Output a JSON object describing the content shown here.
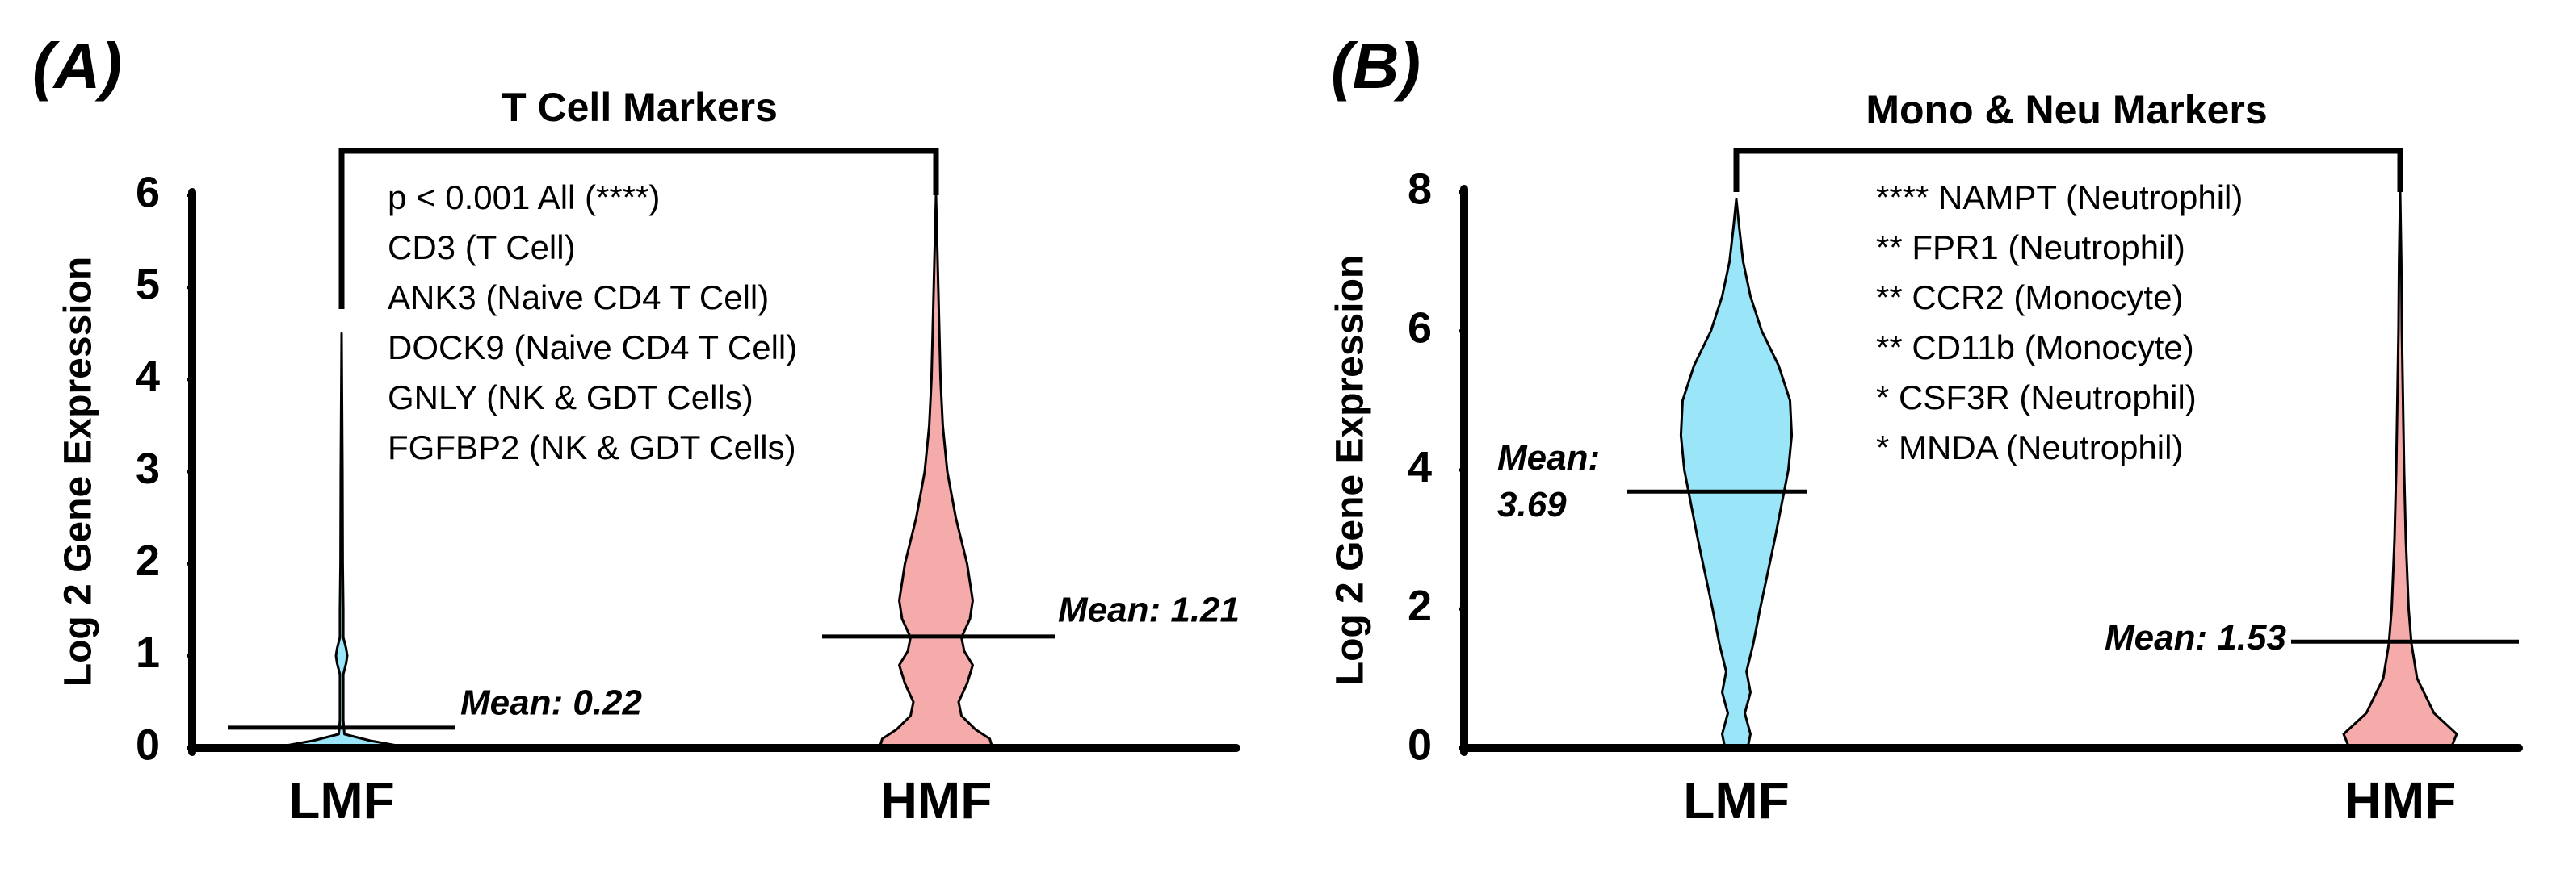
{
  "chart_data": [
    {
      "type": "violin",
      "panel_label": "(A)",
      "title": "T Cell Markers",
      "ylabel": "Log 2 Gene Expression",
      "categories": [
        "LMF",
        "HMF"
      ],
      "ylim": [
        0,
        6
      ],
      "yticks": [
        0,
        1,
        2,
        3,
        4,
        5,
        6
      ],
      "violins": [
        {
          "color": "#9ae6f8",
          "y": [
            0,
            0.03,
            0.08,
            0.15,
            0.3,
            0.8,
            0.92,
            1.0,
            1.08,
            1.2,
            1.5,
            2,
            3,
            4.5
          ],
          "density": [
            1,
            0.95,
            0.5,
            0.05,
            0.03,
            0.03,
            0.08,
            0.1,
            0.08,
            0.03,
            0.03,
            0.02,
            0.015,
            0
          ]
        },
        {
          "color": "#f6abab",
          "y": [
            0,
            0.1,
            0.2,
            0.35,
            0.5,
            0.7,
            0.9,
            1.05,
            1.2,
            1.4,
            1.6,
            2.0,
            2.5,
            3,
            3.5,
            4,
            5,
            6
          ],
          "density": [
            1,
            0.95,
            0.7,
            0.45,
            0.4,
            0.55,
            0.65,
            0.5,
            0.45,
            0.6,
            0.65,
            0.55,
            0.35,
            0.2,
            0.12,
            0.08,
            0.04,
            0
          ]
        }
      ],
      "means": [
        0.22,
        1.21
      ],
      "mean_labels": [
        "Mean: 0.22",
        "Mean: 1.21"
      ],
      "annotations": [
        "p < 0.001 All (****)",
        "CD3 (T Cell)",
        "ANK3 (Naive CD4 T Cell)",
        "DOCK9 (Naive CD4 T Cell)",
        "GNLY (NK & GDT Cells)",
        "FGFBP2 (NK & GDT Cells)"
      ]
    },
    {
      "type": "violin",
      "panel_label": "(B)",
      "title": "Mono & Neu Markers",
      "ylabel": "Log 2 Gene Expression",
      "categories": [
        "LMF",
        "HMF"
      ],
      "ylim": [
        0,
        8
      ],
      "yticks": [
        0,
        2,
        4,
        6,
        8
      ],
      "violins": [
        {
          "color": "#9ae6f8",
          "y": [
            0,
            0.2,
            0.5,
            0.8,
            1.1,
            1.5,
            2,
            2.5,
            3,
            3.5,
            4,
            4.5,
            5,
            5.5,
            6,
            6.5,
            7,
            7.5,
            7.9
          ],
          "density": [
            0.2,
            0.25,
            0.15,
            0.25,
            0.18,
            0.3,
            0.42,
            0.55,
            0.68,
            0.8,
            0.92,
            0.98,
            0.95,
            0.75,
            0.45,
            0.25,
            0.12,
            0.05,
            0
          ]
        },
        {
          "color": "#f6abab",
          "y": [
            0,
            0.2,
            0.5,
            1,
            1.5,
            2,
            3,
            4,
            5,
            6,
            7,
            8
          ],
          "density": [
            0.9,
            1,
            0.6,
            0.3,
            0.2,
            0.15,
            0.1,
            0.07,
            0.05,
            0.03,
            0.02,
            0
          ]
        }
      ],
      "means": [
        3.69,
        1.53
      ],
      "mean_labels": [
        "Mean: 3.69",
        "Mean: 1.53"
      ],
      "annotations": [
        "**** NAMPT (Neutrophil)",
        "** FPR1 (Neutrophil)",
        "** CCR2 (Monocyte)",
        "** CD11b (Monocyte)",
        "* CSF3R (Neutrophil)",
        "* MNDA (Neutrophil)"
      ]
    }
  ]
}
